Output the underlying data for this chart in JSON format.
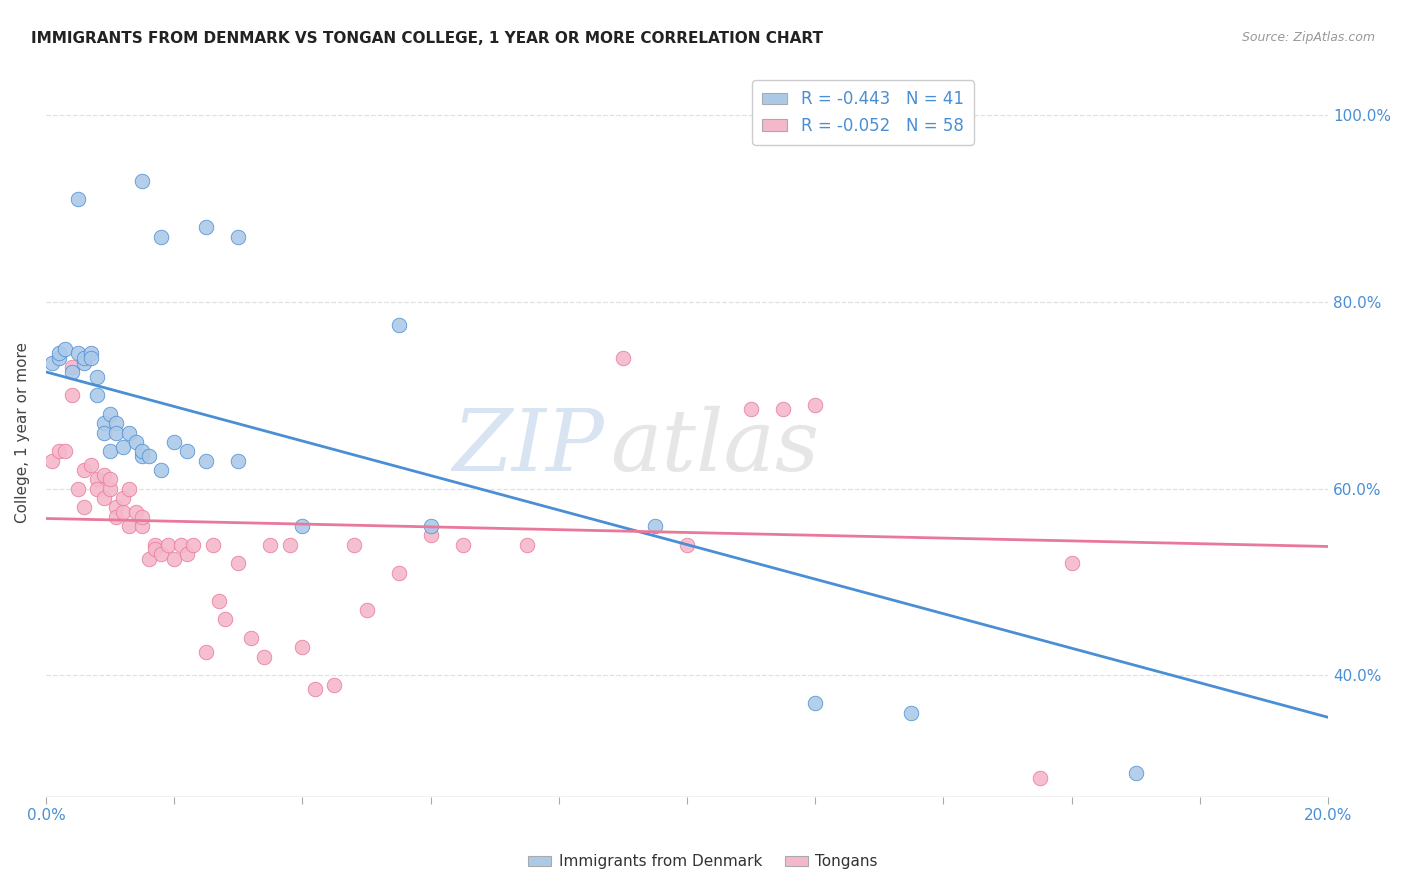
{
  "title": "IMMIGRANTS FROM DENMARK VS TONGAN COLLEGE, 1 YEAR OR MORE CORRELATION CHART",
  "source": "Source: ZipAtlas.com",
  "ylabel": "College, 1 year or more",
  "xlim": [
    0.0,
    0.2
  ],
  "ylim": [
    0.27,
    1.05
  ],
  "denmark_R": -0.443,
  "denmark_N": 41,
  "tongan_R": -0.052,
  "tongan_N": 58,
  "denmark_color": "#adc9e8",
  "tongan_color": "#f5b8cb",
  "denmark_line_color": "#4a8fd4",
  "tongan_line_color": "#e8799a",
  "legend_text_color": "#4a8fd4",
  "watermark_color": "#c5d8ec",
  "grid_color": "#e0e0e0",
  "denmark_line_x": [
    0.0,
    0.2
  ],
  "denmark_line_y": [
    0.725,
    0.355
  ],
  "tongan_line_x": [
    0.0,
    0.2
  ],
  "tongan_line_y": [
    0.568,
    0.538
  ],
  "denmark_x": [
    0.001,
    0.002,
    0.002,
    0.003,
    0.004,
    0.005,
    0.006,
    0.006,
    0.007,
    0.007,
    0.008,
    0.008,
    0.009,
    0.009,
    0.01,
    0.01,
    0.011,
    0.011,
    0.012,
    0.013,
    0.014,
    0.015,
    0.015,
    0.016,
    0.018,
    0.02,
    0.022,
    0.025,
    0.03,
    0.04,
    0.055,
    0.06,
    0.095,
    0.12,
    0.135,
    0.005,
    0.015,
    0.018,
    0.025,
    0.03,
    0.17
  ],
  "denmark_y": [
    0.735,
    0.74,
    0.745,
    0.75,
    0.725,
    0.745,
    0.735,
    0.74,
    0.745,
    0.74,
    0.72,
    0.7,
    0.67,
    0.66,
    0.68,
    0.64,
    0.67,
    0.66,
    0.645,
    0.66,
    0.65,
    0.635,
    0.64,
    0.635,
    0.62,
    0.65,
    0.64,
    0.63,
    0.63,
    0.56,
    0.775,
    0.56,
    0.56,
    0.37,
    0.36,
    0.91,
    0.93,
    0.87,
    0.88,
    0.87,
    0.295
  ],
  "tongan_x": [
    0.001,
    0.002,
    0.003,
    0.004,
    0.004,
    0.005,
    0.006,
    0.006,
    0.007,
    0.008,
    0.008,
    0.009,
    0.009,
    0.01,
    0.01,
    0.011,
    0.011,
    0.012,
    0.012,
    0.013,
    0.013,
    0.014,
    0.015,
    0.015,
    0.016,
    0.017,
    0.017,
    0.018,
    0.019,
    0.02,
    0.021,
    0.022,
    0.023,
    0.025,
    0.026,
    0.027,
    0.028,
    0.03,
    0.032,
    0.034,
    0.035,
    0.038,
    0.04,
    0.042,
    0.045,
    0.048,
    0.05,
    0.055,
    0.06,
    0.065,
    0.11,
    0.115,
    0.12,
    0.155,
    0.16,
    0.075,
    0.09,
    0.1
  ],
  "tongan_y": [
    0.63,
    0.64,
    0.64,
    0.73,
    0.7,
    0.6,
    0.58,
    0.62,
    0.625,
    0.61,
    0.6,
    0.59,
    0.615,
    0.6,
    0.61,
    0.58,
    0.57,
    0.575,
    0.59,
    0.6,
    0.56,
    0.575,
    0.56,
    0.57,
    0.525,
    0.54,
    0.535,
    0.53,
    0.54,
    0.525,
    0.54,
    0.53,
    0.54,
    0.425,
    0.54,
    0.48,
    0.46,
    0.52,
    0.44,
    0.42,
    0.54,
    0.54,
    0.43,
    0.385,
    0.39,
    0.54,
    0.47,
    0.51,
    0.55,
    0.54,
    0.685,
    0.685,
    0.69,
    0.29,
    0.52,
    0.54,
    0.74,
    0.54
  ]
}
